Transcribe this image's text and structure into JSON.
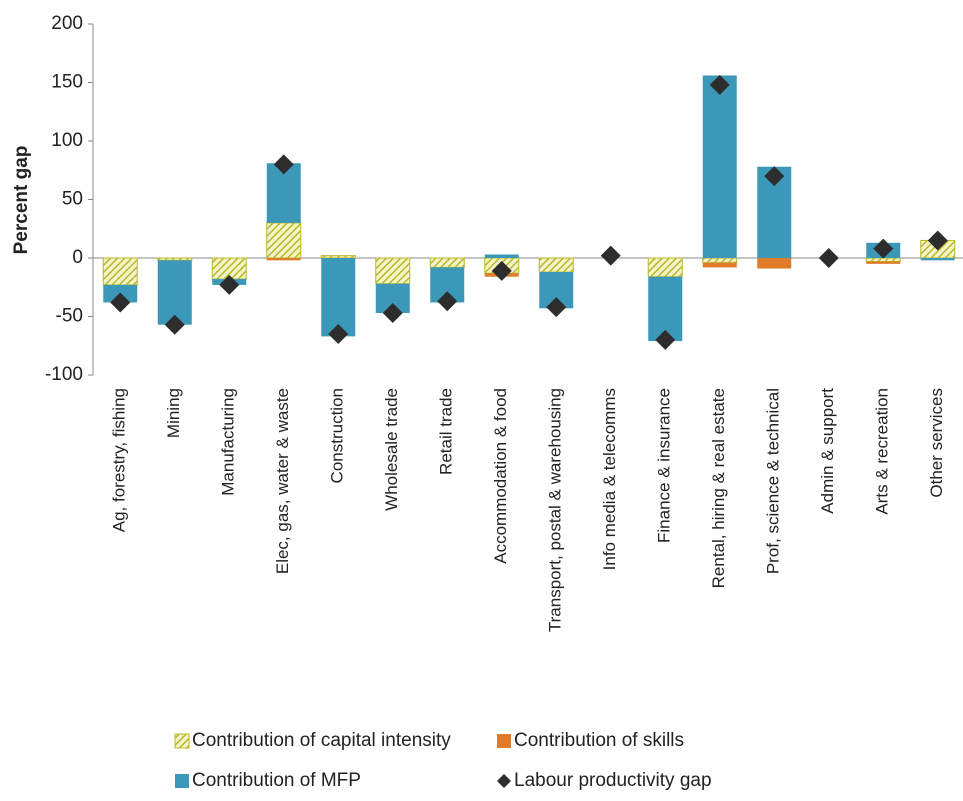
{
  "chart_data": {
    "type": "bar",
    "stacked": true,
    "ylabel": "Percent gap",
    "categories": [
      "Ag, forestry, fishing",
      "Mining",
      "Manufacturing",
      "Elec, gas, water & waste",
      "Construction",
      "Wholesale trade",
      "Retail trade",
      "Accommodation & food",
      "Transport, postal & warehousing",
      "Info media & telecomms",
      "Finance & insurance",
      "Rental, hiring & real estate",
      "Prof, science & technical",
      "Admin & support",
      "Arts & recreation",
      "Other services"
    ],
    "series": [
      {
        "name": "Contribution of capital intensity",
        "color": "#b8b82a",
        "pattern": "hatch",
        "values": [
          -23,
          -2,
          -18,
          30,
          2,
          -22,
          -8,
          -13,
          -12,
          0,
          -16,
          -4,
          0,
          0,
          -3,
          15
        ]
      },
      {
        "name": "Contribution of skills",
        "color": "#e07b2a",
        "values": [
          0,
          0,
          0,
          -2,
          0,
          0,
          0,
          -3,
          0,
          0,
          0,
          -4,
          -9,
          0,
          -2,
          0
        ]
      },
      {
        "name": "Contribution of MFP",
        "color": "#3c98b8",
        "values": [
          -15,
          -55,
          -5,
          51,
          -67,
          -25,
          -30,
          3,
          -31,
          0,
          -55,
          156,
          78,
          0,
          13,
          -2
        ]
      },
      {
        "name": "Labour productivity gap",
        "color": "#2d2d2d",
        "type": "scatter",
        "marker": "diamond",
        "values": [
          -38,
          -57,
          -23,
          80,
          -65,
          -47,
          -37,
          -11,
          -42,
          2,
          -70,
          148,
          70,
          0,
          8,
          15
        ]
      }
    ],
    "ylim": [
      -100,
      200
    ],
    "yticks": [
      -100,
      -50,
      0,
      50,
      100,
      150,
      200
    ]
  }
}
